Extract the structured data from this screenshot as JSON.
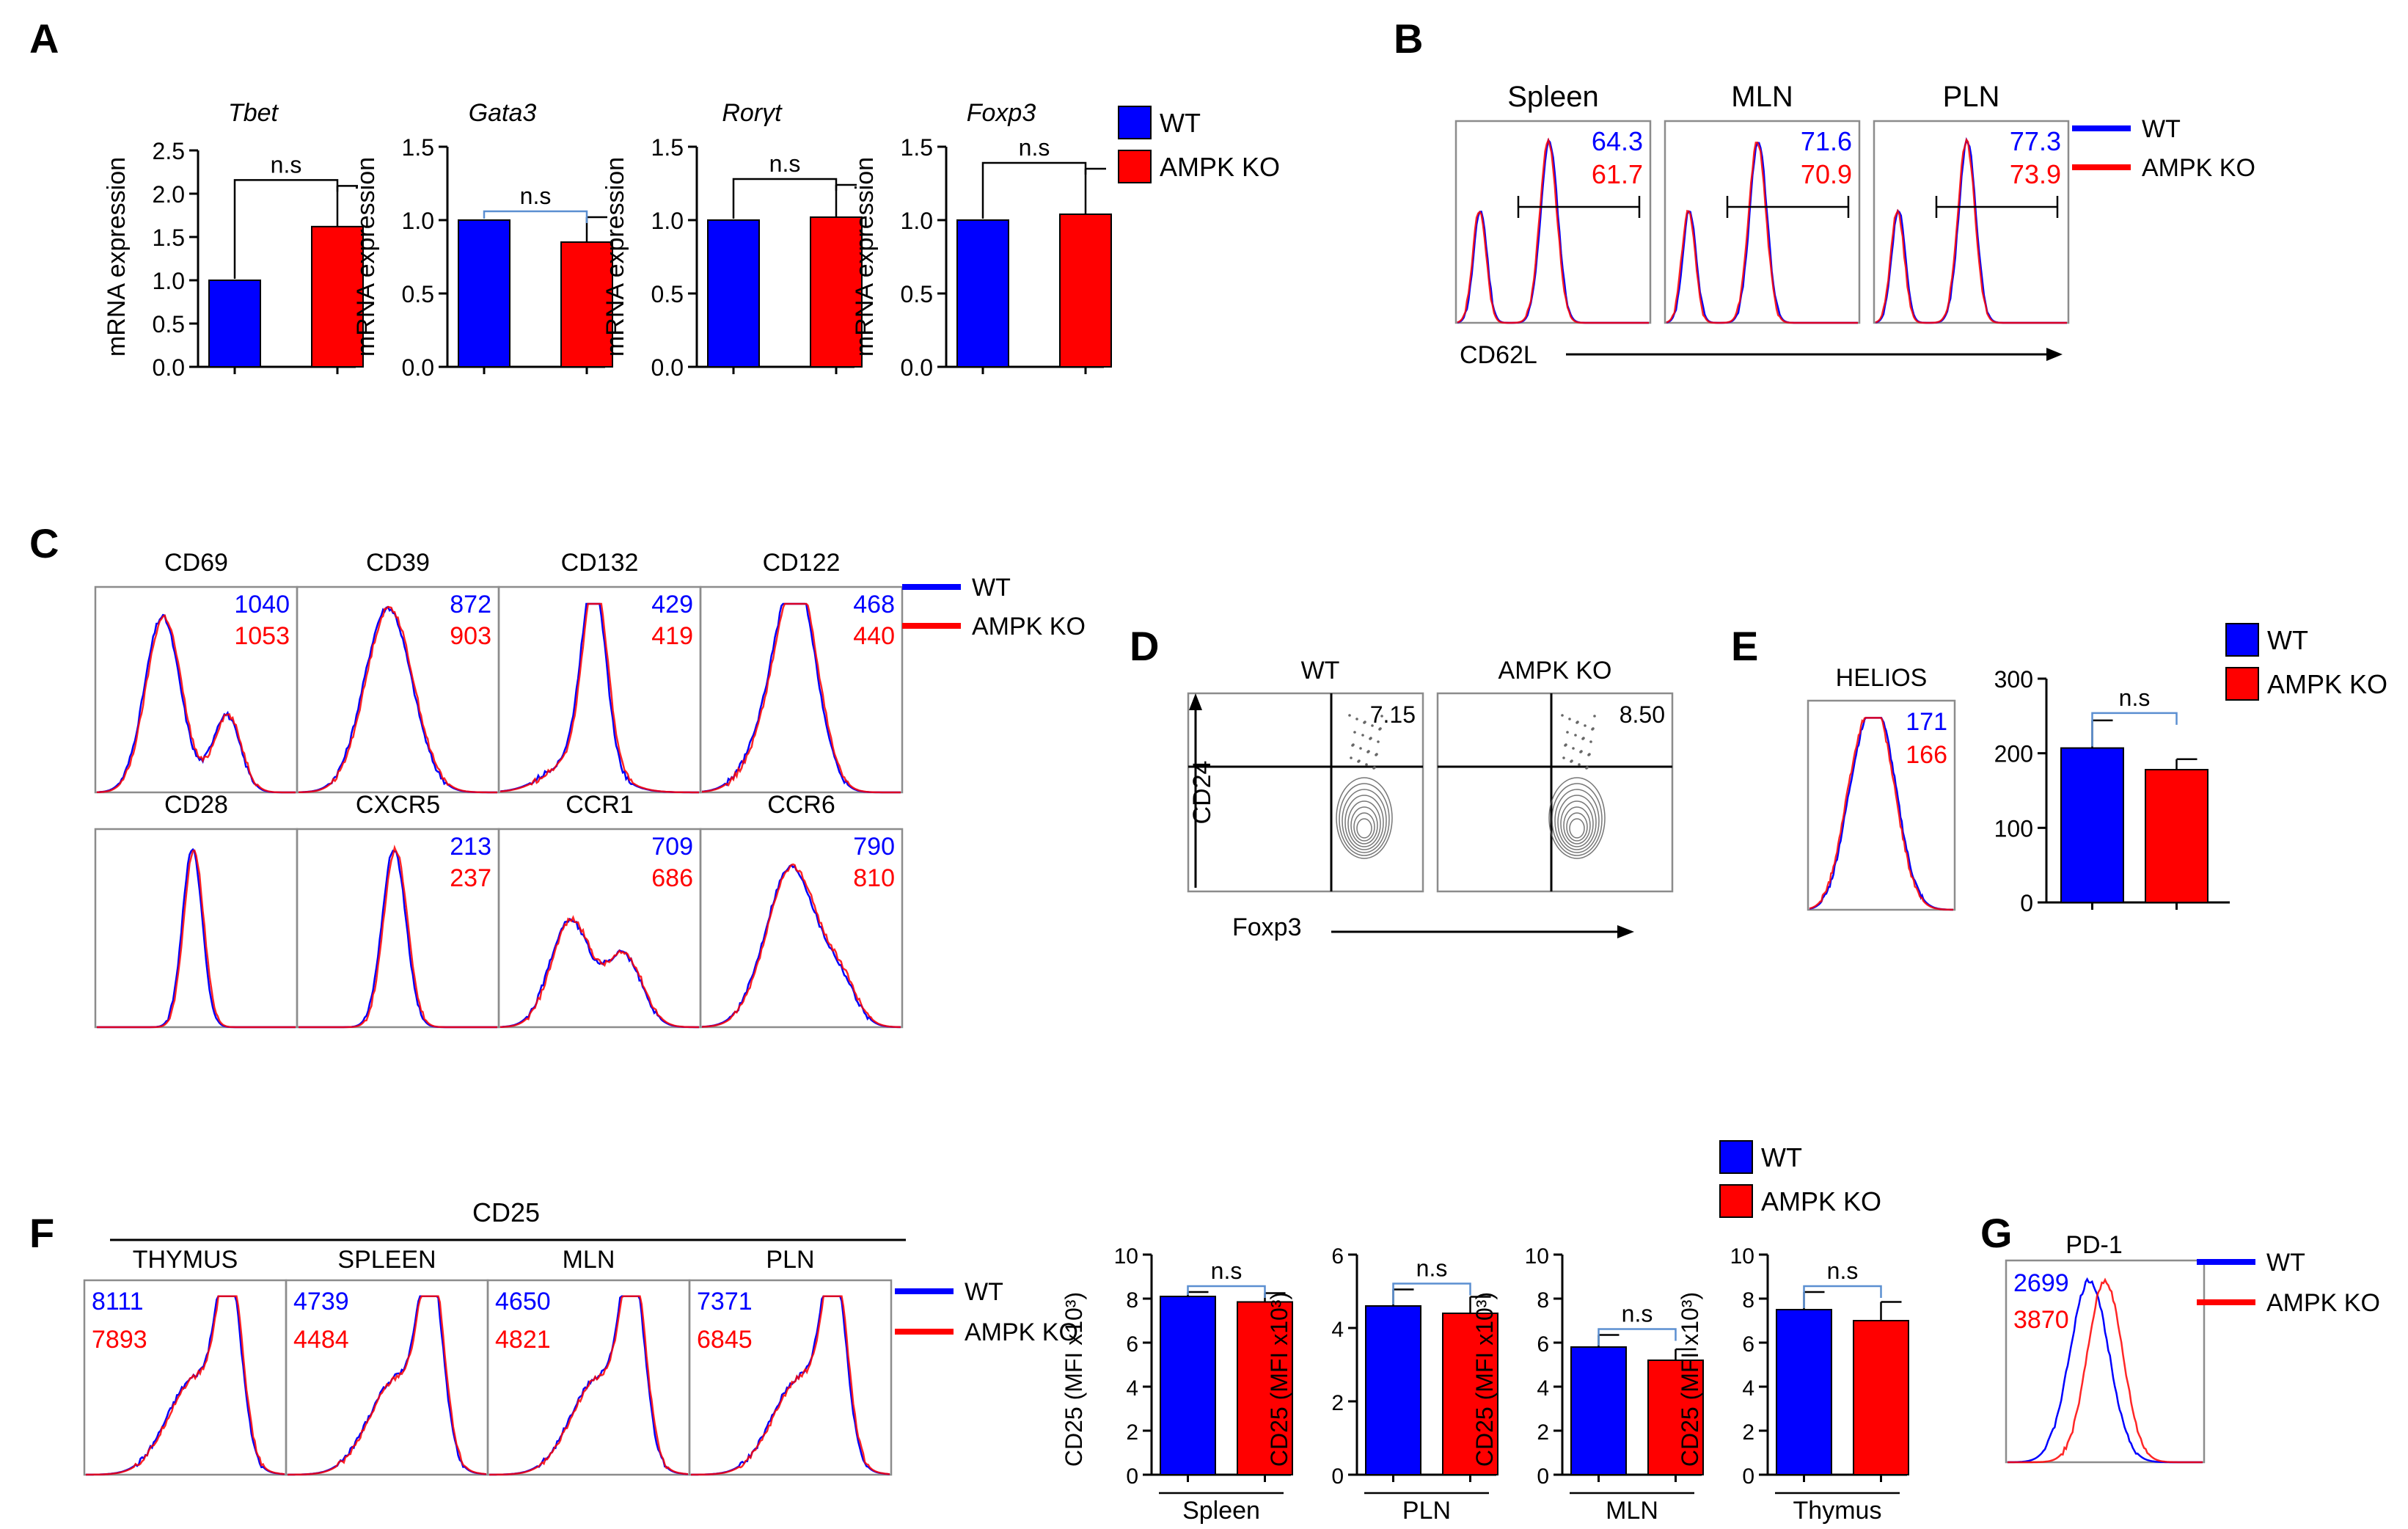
{
  "colors": {
    "wt": "#0000ff",
    "ko": "#ff0000",
    "axis": "#000000",
    "bracket": "#5b8fd1",
    "frame": "#8c8c8c"
  },
  "legend": {
    "wt": "WT",
    "ko": "AMPK KO"
  },
  "panels": {
    "A": {
      "letter": "A"
    },
    "B": {
      "letter": "B"
    },
    "C": {
      "letter": "C"
    },
    "D": {
      "letter": "D"
    },
    "E": {
      "letter": "E"
    },
    "F": {
      "letter": "F"
    },
    "G": {
      "letter": "G"
    }
  },
  "chart_data": [
    {
      "panel": "A",
      "type": "bar",
      "ylabel": "mRNA expression",
      "categories": [
        "WT",
        "AMPK KO"
      ],
      "charts": [
        {
          "title": "Tbet",
          "ylim": [
            0,
            2.5
          ],
          "ticks": [
            "0.0",
            "0.5",
            "1.0",
            "1.5",
            "2.0",
            "2.5"
          ],
          "tickvals": [
            0,
            0.5,
            1,
            1.5,
            2,
            2.5
          ],
          "values": [
            1.0,
            1.62
          ],
          "errors": [
            0,
            0.47
          ],
          "sig": "n.s",
          "bracket": "black"
        },
        {
          "title": "Gata3",
          "ylim": [
            0,
            1.5
          ],
          "ticks": [
            "0.0",
            "0.5",
            "1.0",
            "1.5"
          ],
          "tickvals": [
            0,
            0.5,
            1,
            1.5
          ],
          "values": [
            1.0,
            0.85
          ],
          "errors": [
            0,
            0.17
          ],
          "sig": "n.s",
          "bracket": "blue"
        },
        {
          "title": "Rorγt",
          "ylim": [
            0,
            1.5
          ],
          "ticks": [
            "0.0",
            "0.5",
            "1.0",
            "1.5"
          ],
          "tickvals": [
            0,
            0.5,
            1,
            1.5
          ],
          "values": [
            1.0,
            1.02
          ],
          "errors": [
            0,
            0.22
          ],
          "sig": "n.s",
          "bracket": "black"
        },
        {
          "title": "Foxp3",
          "ylim": [
            0,
            1.5
          ],
          "ticks": [
            "0.0",
            "0.5",
            "1.0",
            "1.5"
          ],
          "tickvals": [
            0,
            0.5,
            1,
            1.5
          ],
          "values": [
            1.0,
            1.04
          ],
          "errors": [
            0,
            0.31
          ],
          "sig": "n.s",
          "bracket": "black"
        }
      ]
    },
    {
      "panel": "B",
      "type": "histogram",
      "xlabel": "CD62L",
      "plots": [
        {
          "title": "Spleen",
          "wt": "64.3",
          "ko": "61.7"
        },
        {
          "title": "MLN",
          "wt": "71.6",
          "ko": "70.9"
        },
        {
          "title": "PLN",
          "wt": "77.3",
          "ko": "73.9"
        }
      ]
    },
    {
      "panel": "C",
      "type": "histogram",
      "plots": [
        {
          "title": "CD69",
          "wt": "1040",
          "ko": "1053"
        },
        {
          "title": "CD39",
          "wt": "872",
          "ko": "903"
        },
        {
          "title": "CD132",
          "wt": "429",
          "ko": "419"
        },
        {
          "title": "CD122",
          "wt": "468",
          "ko": "440"
        },
        {
          "title": "CD28",
          "wt": "",
          "ko": ""
        },
        {
          "title": "CXCR5",
          "wt": "213",
          "ko": "237"
        },
        {
          "title": "CCR1",
          "wt": "709",
          "ko": "686"
        },
        {
          "title": "CCR6",
          "wt": "790",
          "ko": "810"
        }
      ]
    },
    {
      "panel": "D",
      "type": "contour",
      "xlabel": "Foxp3",
      "ylabel": "CD24",
      "plots": [
        {
          "title": "WT",
          "value": "7.15"
        },
        {
          "title": "AMPK KO",
          "value": "8.50"
        }
      ]
    },
    {
      "panel": "E",
      "type": "histogram+bar",
      "histogram": {
        "title": "HELIOS",
        "wt": "171",
        "ko": "166"
      },
      "bar": {
        "ylim": [
          0,
          300
        ],
        "ticks": [
          "0",
          "100",
          "200",
          "300"
        ],
        "tickvals": [
          0,
          100,
          200,
          300
        ],
        "categories": [
          "WT",
          "AMPK KO"
        ],
        "values": [
          207,
          178
        ],
        "errors": [
          37,
          14
        ],
        "sig": "n.s"
      }
    },
    {
      "panel": "F",
      "type": "histogram",
      "header": "CD25",
      "plots": [
        {
          "title": "THYMUS",
          "wt": "8111",
          "ko": "7893"
        },
        {
          "title": "SPLEEN",
          "wt": "4739",
          "ko": "4484"
        },
        {
          "title": "MLN",
          "wt": "4650",
          "ko": "4821"
        },
        {
          "title": "PLN",
          "wt": "7371",
          "ko": "6845"
        }
      ]
    },
    {
      "panel": "F",
      "type": "bar",
      "ylabel": "CD25 (MFI x10³)",
      "categories": [
        "WT",
        "AMPK KO"
      ],
      "charts": [
        {
          "xlabel": "Spleen",
          "ylim": [
            0,
            10
          ],
          "ticks": [
            "0",
            "2",
            "4",
            "6",
            "8",
            "10"
          ],
          "tickvals": [
            0,
            2,
            4,
            6,
            8,
            10
          ],
          "values": [
            8.1,
            7.85
          ],
          "errors": [
            0.2,
            0.4
          ],
          "sig": "n.s"
        },
        {
          "xlabel": "PLN",
          "ylim": [
            0,
            6
          ],
          "ticks": [
            "0",
            "2",
            "4",
            "6"
          ],
          "tickvals": [
            0,
            2,
            4,
            6
          ],
          "values": [
            4.6,
            4.4
          ],
          "errors": [
            0.45,
            0.45
          ],
          "sig": "n.s"
        },
        {
          "xlabel": "MLN",
          "ylim": [
            0,
            10
          ],
          "ticks": [
            "0",
            "2",
            "4",
            "6",
            "8",
            "10"
          ],
          "tickvals": [
            0,
            2,
            4,
            6,
            8,
            10
          ],
          "values": [
            5.8,
            5.2
          ],
          "errors": [
            0.55,
            0.5
          ],
          "sig": "n.s"
        },
        {
          "xlabel": "Thymus",
          "ylim": [
            0,
            10
          ],
          "ticks": [
            "0",
            "2",
            "4",
            "6",
            "8",
            "10"
          ],
          "tickvals": [
            0,
            2,
            4,
            6,
            8,
            10
          ],
          "values": [
            7.5,
            7.0
          ],
          "errors": [
            0.8,
            0.85
          ],
          "sig": "n.s"
        }
      ]
    },
    {
      "panel": "G",
      "type": "histogram",
      "histogram": {
        "title": "PD-1",
        "wt": "2699",
        "ko": "3870"
      }
    }
  ]
}
